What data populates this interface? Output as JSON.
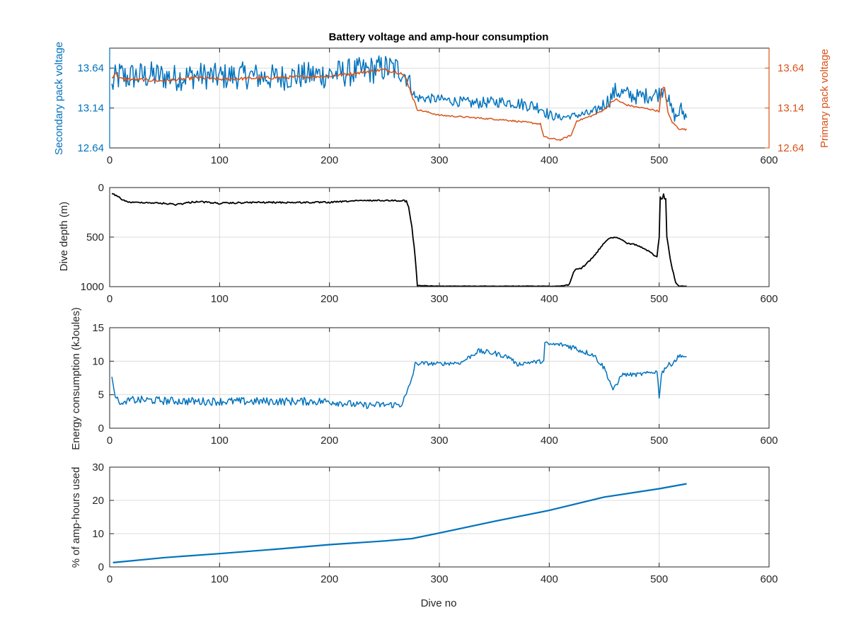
{
  "chart_data": [
    {
      "type": "line",
      "title": "Battery voltage and amp-hour consumption",
      "xlabel": "",
      "ylabel": "Secondary pack voltage",
      "y2label": "Primary pack voltage",
      "xlim": [
        0,
        600
      ],
      "ylim": [
        12.64,
        13.89
      ],
      "y2lim": [
        12.64,
        13.89
      ],
      "x_ticks": [
        "0",
        "100",
        "200",
        "300",
        "400",
        "500",
        "600"
      ],
      "y_ticks": [
        "12.64",
        "13.14",
        "13.64"
      ],
      "y2_ticks": [
        "12.64",
        "13.14",
        "13.64"
      ],
      "grid": true,
      "colors": {
        "secondary": "#0072BD",
        "primary": "#D95319"
      },
      "series": [
        {
          "axis": "left",
          "x": [
            2,
            5,
            10,
            15,
            20,
            40,
            60,
            80,
            100,
            120,
            150,
            180,
            200,
            230,
            250,
            265,
            272,
            278,
            300,
            330,
            360,
            380,
            392,
            400,
            410,
            420,
            440,
            455,
            460,
            480,
            500,
            505,
            510,
            515,
            520,
            525
          ],
          "y": [
            13.4,
            13.5,
            13.55,
            13.52,
            13.54,
            13.55,
            13.52,
            13.55,
            13.53,
            13.55,
            13.52,
            13.55,
            13.56,
            13.6,
            13.64,
            13.62,
            13.5,
            13.27,
            13.25,
            13.2,
            13.22,
            13.18,
            13.15,
            13.05,
            13.02,
            13.04,
            13.08,
            13.25,
            13.35,
            13.28,
            13.32,
            13.42,
            13.15,
            13.02,
            13.12,
            13.02
          ],
          "noise_amplitude": [
            0.14,
            0.18,
            0.2,
            0.18,
            0.18,
            0.18,
            0.17,
            0.17,
            0.17,
            0.17,
            0.17,
            0.17,
            0.18,
            0.18,
            0.18,
            0.18,
            0.12,
            0.06,
            0.06,
            0.07,
            0.07,
            0.08,
            0.08,
            0.07,
            0.04,
            0.04,
            0.06,
            0.1,
            0.11,
            0.1,
            0.1,
            0.12,
            0.1,
            0.08,
            0.1,
            0.1
          ]
        },
        {
          "axis": "right",
          "x": [
            2,
            5,
            10,
            20,
            50,
            80,
            100,
            150,
            200,
            250,
            265,
            270,
            275,
            280,
            300,
            330,
            360,
            380,
            392,
            395,
            400,
            410,
            420,
            425,
            430,
            440,
            450,
            460,
            470,
            480,
            490,
            500,
            502,
            505,
            508,
            512,
            518,
            525
          ],
          "y": [
            13.52,
            13.58,
            13.5,
            13.5,
            13.48,
            13.52,
            13.5,
            13.52,
            13.54,
            13.62,
            13.58,
            13.5,
            13.3,
            13.12,
            13.05,
            13.02,
            12.99,
            12.96,
            12.94,
            12.78,
            12.76,
            12.74,
            12.8,
            12.98,
            13.0,
            13.05,
            13.12,
            13.25,
            13.18,
            13.15,
            13.13,
            13.1,
            13.35,
            13.4,
            13.08,
            12.96,
            12.88,
            12.87
          ],
          "noise_amplitude": [
            0.02,
            0.03,
            0.03,
            0.02,
            0.02,
            0.02,
            0.02,
            0.02,
            0.02,
            0.02,
            0.02,
            0.02,
            0.02,
            0.01,
            0.01,
            0.01,
            0.01,
            0.01,
            0.01,
            0.01,
            0.01,
            0.01,
            0.01,
            0.01,
            0.01,
            0.01,
            0.01,
            0.02,
            0.01,
            0.01,
            0.01,
            0.01,
            0.02,
            0.02,
            0.01,
            0.01,
            0.01,
            0.01
          ]
        }
      ]
    },
    {
      "type": "line",
      "title": "",
      "xlabel": "",
      "ylabel": "Dive depth (m)",
      "xlim": [
        0,
        600
      ],
      "ylim": [
        1000,
        0
      ],
      "y_reversed": true,
      "x_ticks": [
        "0",
        "100",
        "200",
        "300",
        "400",
        "500",
        "600"
      ],
      "y_ticks": [
        "0",
        "500",
        "1000"
      ],
      "grid": true,
      "colors": {
        "line": "#000000"
      },
      "series": [
        {
          "x": [
            2,
            5,
            10,
            15,
            20,
            30,
            50,
            60,
            80,
            100,
            130,
            150,
            180,
            200,
            220,
            240,
            260,
            265,
            268,
            270,
            272,
            275,
            278,
            280,
            300,
            350,
            400,
            410,
            418,
            422,
            430,
            440,
            450,
            455,
            460,
            465,
            470,
            480,
            490,
            495,
            498,
            500,
            501,
            502,
            504,
            506,
            507,
            508,
            510,
            512,
            515,
            518,
            520,
            525
          ],
          "y": [
            60,
            80,
            110,
            140,
            150,
            150,
            160,
            170,
            140,
            160,
            150,
            150,
            150,
            150,
            135,
            130,
            130,
            130,
            130,
            140,
            200,
            400,
            700,
            990,
            995,
            995,
            995,
            995,
            980,
            850,
            810,
            700,
            560,
            510,
            500,
            520,
            560,
            580,
            640,
            680,
            700,
            500,
            100,
            130,
            80,
            120,
            500,
            560,
            720,
            820,
            960,
            995,
            995,
            995
          ],
          "noise_amplitude": [
            5,
            10,
            8,
            6,
            6,
            6,
            8,
            10,
            8,
            8,
            8,
            8,
            8,
            8,
            6,
            6,
            6,
            10,
            10,
            10,
            10,
            10,
            10,
            4,
            2,
            2,
            2,
            4,
            8,
            15,
            12,
            8,
            6,
            5,
            5,
            5,
            6,
            6,
            6,
            6,
            6,
            10,
            20,
            20,
            20,
            20,
            10,
            8,
            6,
            6,
            4,
            3,
            2,
            2
          ]
        }
      ]
    },
    {
      "type": "line",
      "title": "",
      "xlabel": "",
      "ylabel": "Energy consumption (kJoules)",
      "xlim": [
        0,
        600
      ],
      "ylim": [
        0,
        15
      ],
      "x_ticks": [
        "0",
        "100",
        "200",
        "300",
        "400",
        "500",
        "600"
      ],
      "y_ticks": [
        "0",
        "5",
        "10",
        "15"
      ],
      "grid": true,
      "colors": {
        "line": "#0072BD"
      },
      "series": [
        {
          "x": [
            2,
            5,
            8,
            12,
            15,
            20,
            30,
            50,
            80,
            100,
            130,
            160,
            200,
            230,
            250,
            265,
            270,
            275,
            278,
            282,
            300,
            320,
            335,
            350,
            365,
            370,
            380,
            395,
            396,
            400,
            410,
            420,
            430,
            440,
            450,
            455,
            458,
            462,
            465,
            470,
            480,
            490,
            498,
            500,
            502,
            505,
            510,
            515,
            520,
            525
          ],
          "y": [
            8.0,
            5.0,
            4.0,
            3.5,
            4.0,
            4.2,
            4.2,
            4.1,
            4.0,
            4.0,
            4.0,
            4.0,
            4.0,
            3.4,
            3.5,
            3.5,
            5.0,
            7.5,
            9.5,
            9.7,
            9.6,
            9.8,
            11.5,
            11.2,
            10.5,
            9.5,
            9.8,
            10.0,
            12.7,
            12.5,
            12.5,
            12.2,
            11.5,
            11.0,
            9.0,
            7.0,
            5.8,
            6.5,
            8.0,
            8.0,
            8.0,
            8.2,
            8.5,
            4.8,
            8.0,
            9.0,
            9.5,
            10.2,
            11.0,
            10.3
          ],
          "noise_amplitude": [
            0.5,
            0.4,
            0.3,
            0.3,
            0.4,
            0.6,
            0.6,
            0.6,
            0.6,
            0.6,
            0.6,
            0.6,
            0.6,
            0.5,
            0.5,
            0.5,
            0.4,
            0.4,
            0.4,
            0.3,
            0.3,
            0.3,
            0.4,
            0.4,
            0.3,
            0.3,
            0.3,
            0.3,
            0.3,
            0.3,
            0.3,
            0.5,
            0.4,
            0.4,
            0.4,
            0.3,
            0.3,
            0.3,
            0.3,
            0.3,
            0.3,
            0.3,
            0.3,
            0.5,
            0.4,
            0.4,
            0.4,
            0.4,
            0.4,
            0.4
          ]
        }
      ]
    },
    {
      "type": "line",
      "title": "",
      "xlabel": "Dive no",
      "ylabel": "% of amp-hours used",
      "xlim": [
        0,
        600
      ],
      "ylim": [
        0,
        30
      ],
      "x_ticks": [
        "0",
        "100",
        "200",
        "300",
        "400",
        "500",
        "600"
      ],
      "y_ticks": [
        "0",
        "10",
        "20",
        "30"
      ],
      "grid": true,
      "colors": {
        "line": "#0072BD"
      },
      "series": [
        {
          "x": [
            3,
            50,
            100,
            150,
            200,
            250,
            275,
            300,
            350,
            400,
            450,
            500,
            525
          ],
          "y": [
            1.3,
            2.8,
            4.0,
            5.3,
            6.7,
            7.8,
            8.5,
            10.2,
            13.7,
            17.0,
            21.0,
            23.5,
            25.0
          ],
          "noise_amplitude": [
            0,
            0,
            0,
            0,
            0,
            0,
            0,
            0,
            0,
            0,
            0,
            0,
            0
          ]
        }
      ]
    }
  ]
}
